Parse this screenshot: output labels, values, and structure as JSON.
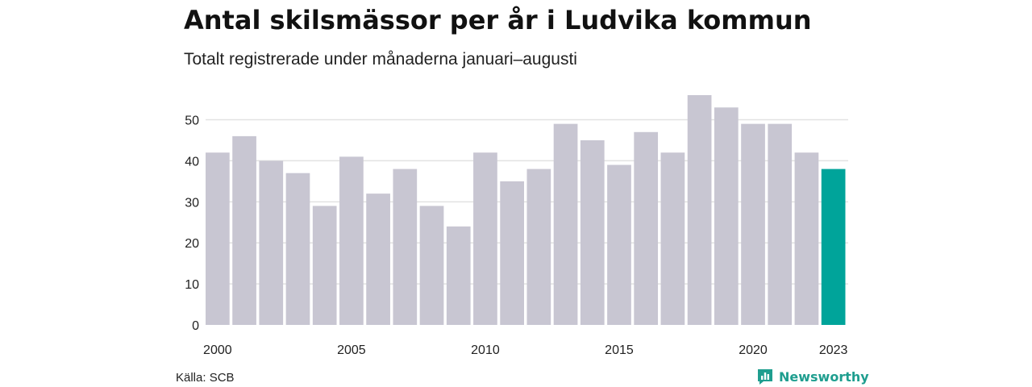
{
  "title": "Antal skilsmässor per år i Ludvika kommun",
  "subtitle": "Totalt registrerade under månaderna januari–augusti",
  "source": "Källa: SCB",
  "brand": {
    "name": "Newsworthy",
    "icon": "newsworthy-logo-icon",
    "color": "#1f9e8f"
  },
  "colors": {
    "bar": "#c8c6d2",
    "highlight": "#00a49a",
    "grid": "#e2e2e2"
  },
  "chart_data": {
    "type": "bar",
    "title": "Antal skilsmässor per år i Ludvika kommun",
    "subtitle": "Totalt registrerade under månaderna januari–augusti",
    "xlabel": "",
    "ylabel": "",
    "categories": [
      2000,
      2001,
      2002,
      2003,
      2004,
      2005,
      2006,
      2007,
      2008,
      2009,
      2010,
      2011,
      2012,
      2013,
      2014,
      2015,
      2016,
      2017,
      2018,
      2019,
      2020,
      2021,
      2022,
      2023
    ],
    "values": [
      42,
      46,
      40,
      37,
      29,
      41,
      32,
      38,
      29,
      24,
      42,
      35,
      38,
      49,
      45,
      39,
      47,
      42,
      56,
      53,
      49,
      49,
      42,
      38
    ],
    "highlight_category": 2023,
    "ylim": [
      0,
      56
    ],
    "yticks": [
      0,
      10,
      20,
      30,
      40,
      50
    ],
    "xtick_labels": [
      "2000",
      "2005",
      "2010",
      "2015",
      "2020",
      "2023"
    ],
    "grid": true,
    "legend": "none"
  }
}
